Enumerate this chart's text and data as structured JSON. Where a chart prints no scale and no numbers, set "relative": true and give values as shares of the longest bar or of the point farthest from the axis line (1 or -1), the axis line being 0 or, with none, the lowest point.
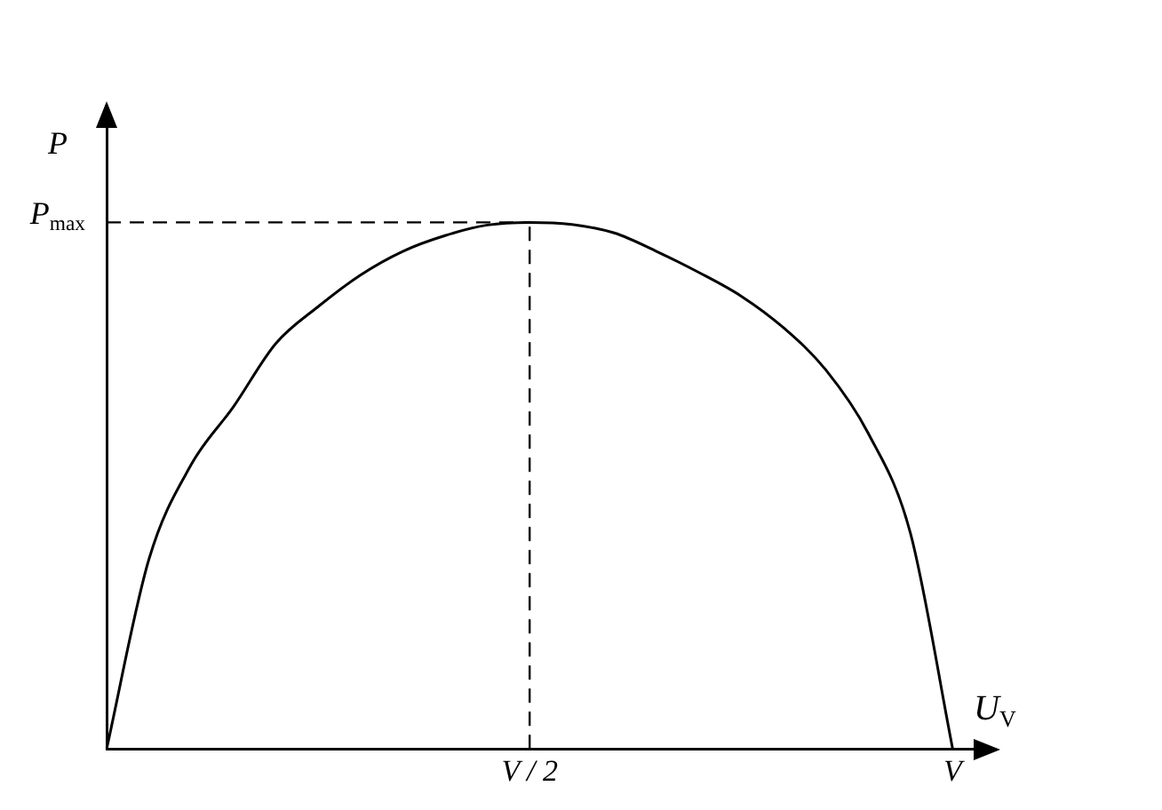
{
  "chart_data": {
    "type": "line",
    "relative": true,
    "xlabel": "U$_{V}$",
    "ylabel": "P",
    "categories": [
      null,
      null,
      null,
      null,
      null,
      null,
      null,
      null,
      null,
      null,
      "V / 2",
      null,
      null,
      null,
      null,
      null,
      null,
      null,
      null,
      null,
      "V",
      null
    ],
    "series": [
      {
        "color": "#000000",
        "values": [
          0,
          0.36,
          0.54,
          0.65,
          0.77,
          0.84,
          0.9,
          0.945,
          0.975,
          0.995,
          1,
          0.996,
          0.98,
          0.945,
          0.905,
          0.86,
          0.8,
          0.72,
          0.6,
          0.41,
          0,
          null
        ]
      }
    ],
    "ref_lines": [
      {
        "axis": "y",
        "value": 1,
        "label": "P$_{max}$",
        "line_style": "dashed",
        "color": "#000000"
      },
      {
        "axis": "x",
        "value": "V / 2",
        "label": null,
        "line_style": "dashed",
        "color": "#000000"
      }
    ],
    "grid": false,
    "legend": false,
    "marker": "none",
    "line_style": "solid"
  }
}
